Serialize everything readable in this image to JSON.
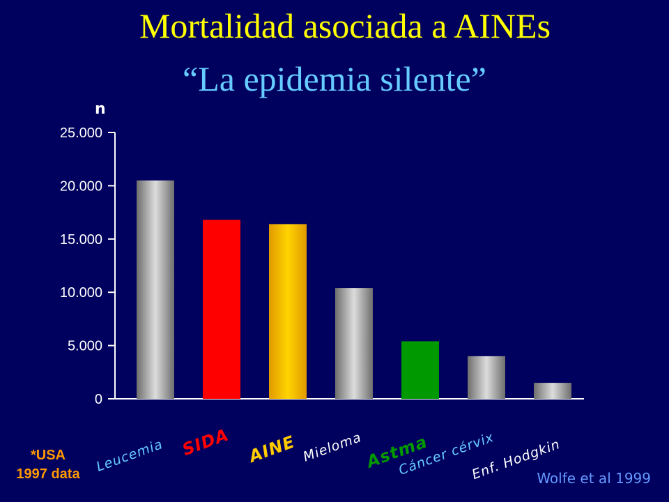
{
  "title": "Mortalidad asociada a AINEs",
  "subtitle": "“La epidemia silente”",
  "note": [
    "*USA",
    "1997 data"
  ],
  "source": "Wolfe et al 1999",
  "chart_data": {
    "type": "bar",
    "ylabel": "n",
    "ylim": [
      0,
      25000
    ],
    "yticks": [
      0,
      5000,
      10000,
      15000,
      20000,
      25000
    ],
    "ytick_labels": [
      "0",
      "5.000",
      "10.000",
      "15.000",
      "20.000",
      "25.000"
    ],
    "categories": [
      "Leucemia",
      "SIDA",
      "AINE",
      "Mieloma",
      "Astma",
      "Cáncer cérvix",
      "Enf. Hodgkin"
    ],
    "values": [
      20500,
      16800,
      16400,
      10400,
      5400,
      4000,
      1500
    ],
    "bar_colors": [
      "gray-gradient",
      "#ff0000",
      "gold-gradient",
      "gray-gradient",
      "#009900",
      "gray-gradient",
      "gray-gradient"
    ],
    "label_colors": [
      "#66ccff",
      "#ff0000",
      "#ffcc00",
      "#ffffff",
      "#009900",
      "#66ccff",
      "#ffffff"
    ],
    "grid": false
  }
}
